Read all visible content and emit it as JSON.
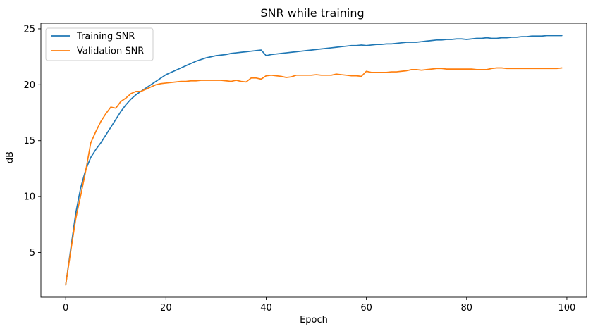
{
  "chart_data": {
    "type": "line",
    "title": "SNR while training",
    "xlabel": "Epoch",
    "ylabel": "dB",
    "xlim": [
      -4.95,
      103.95
    ],
    "ylim": [
      1.0,
      25.5
    ],
    "xticks": [
      0,
      20,
      40,
      60,
      80,
      100
    ],
    "yticks": [
      5,
      10,
      15,
      20,
      25
    ],
    "grid": false,
    "legend": "top-left",
    "series": [
      {
        "name": "Training SNR",
        "color": "#1f77b4",
        "values": [
          2.1,
          5.3,
          8.5,
          10.8,
          12.4,
          13.5,
          14.2,
          14.8,
          15.5,
          16.2,
          16.9,
          17.6,
          18.2,
          18.7,
          19.1,
          19.4,
          19.7,
          20.0,
          20.3,
          20.6,
          20.9,
          21.1,
          21.3,
          21.5,
          21.7,
          21.9,
          22.1,
          22.25,
          22.4,
          22.5,
          22.6,
          22.65,
          22.7,
          22.8,
          22.85,
          22.9,
          22.95,
          23.0,
          23.05,
          23.1,
          22.6,
          22.7,
          22.75,
          22.8,
          22.85,
          22.9,
          22.95,
          23.0,
          23.05,
          23.1,
          23.15,
          23.2,
          23.25,
          23.3,
          23.35,
          23.4,
          23.45,
          23.5,
          23.5,
          23.55,
          23.5,
          23.55,
          23.6,
          23.6,
          23.65,
          23.65,
          23.7,
          23.75,
          23.8,
          23.8,
          23.8,
          23.85,
          23.9,
          23.95,
          24.0,
          24.0,
          24.05,
          24.05,
          24.1,
          24.1,
          24.05,
          24.1,
          24.15,
          24.15,
          24.2,
          24.15,
          24.15,
          24.2,
          24.2,
          24.25,
          24.25,
          24.3,
          24.3,
          24.35,
          24.35,
          24.35,
          24.4,
          24.4,
          24.4,
          24.4
        ]
      },
      {
        "name": "Validation SNR",
        "color": "#ff7f0e",
        "values": [
          2.1,
          5.1,
          8.0,
          10.1,
          12.3,
          14.8,
          15.8,
          16.7,
          17.4,
          18.0,
          17.9,
          18.5,
          18.8,
          19.2,
          19.4,
          19.4,
          19.6,
          19.8,
          20.0,
          20.1,
          20.15,
          20.2,
          20.25,
          20.3,
          20.3,
          20.35,
          20.35,
          20.4,
          20.4,
          20.4,
          20.4,
          20.4,
          20.35,
          20.3,
          20.4,
          20.3,
          20.25,
          20.6,
          20.6,
          20.5,
          20.8,
          20.85,
          20.8,
          20.75,
          20.65,
          20.7,
          20.85,
          20.85,
          20.85,
          20.85,
          20.9,
          20.85,
          20.85,
          20.85,
          20.95,
          20.9,
          20.85,
          20.8,
          20.8,
          20.75,
          21.2,
          21.1,
          21.1,
          21.1,
          21.1,
          21.15,
          21.15,
          21.2,
          21.25,
          21.35,
          21.35,
          21.3,
          21.35,
          21.4,
          21.45,
          21.45,
          21.4,
          21.4,
          21.4,
          21.4,
          21.4,
          21.4,
          21.35,
          21.35,
          21.35,
          21.45,
          21.5,
          21.5,
          21.45,
          21.45,
          21.45,
          21.45,
          21.45,
          21.45,
          21.45,
          21.45,
          21.45,
          21.45,
          21.45,
          21.5
        ]
      }
    ]
  }
}
